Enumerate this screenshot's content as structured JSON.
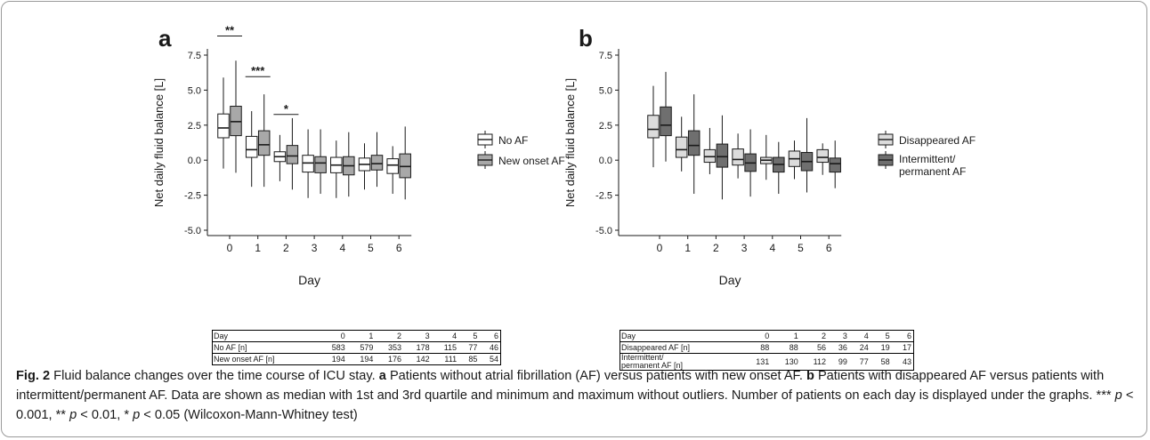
{
  "figure": {
    "caption": {
      "fig_label": "Fig. 2",
      "title": "Fluid balance changes over the time course of ICU stay.",
      "panel_a_tag": "a",
      "panel_a_text": "Patients without atrial fibrillation (AF) versus patients with new onset AF.",
      "panel_b_tag": "b",
      "panel_b_text": "Patients with disappeared AF versus patients with intermittent/permanent AF. Data are shown as median with 1st and 3rd quartile and minimum and maximum without outliers. Number of patients on each day is displayed under the graphs. ***",
      "p1_sym": "p",
      "p1_text": "< 0.001, **",
      "p2_sym": "p",
      "p2_text": "< 0.01, *",
      "p3_sym": "p",
      "p3_text": "< 0.05 (Wilcoxon-Mann-Whitney test)"
    }
  },
  "chart_data": [
    {
      "type": "box",
      "panel_label": "a",
      "xlabel": "Day",
      "ylabel": "Net daily fluid balance [L]",
      "ylim": [
        -5.5,
        8.2
      ],
      "yticks": [
        "7.5",
        "5.0",
        "2.5",
        "0.0",
        "-2.5",
        "-5.0"
      ],
      "ytick_values": [
        7.5,
        5.0,
        2.5,
        0.0,
        -2.5,
        -5.0
      ],
      "categories": [
        "0",
        "1",
        "2",
        "3",
        "4",
        "5",
        "6"
      ],
      "grid": false,
      "legend_position": "right",
      "series": [
        {
          "name": "No AF",
          "color": "#ffffff",
          "boxes": [
            {
              "min": -0.6,
              "q1": 1.6,
              "median": 2.3,
              "q3": 3.3,
              "max": 5.9
            },
            {
              "min": -1.9,
              "q1": 0.2,
              "median": 0.75,
              "q3": 1.7,
              "max": 3.5
            },
            {
              "min": -1.5,
              "q1": -0.1,
              "median": 0.25,
              "q3": 0.6,
              "max": 1.8
            },
            {
              "min": -2.7,
              "q1": -0.85,
              "median": -0.2,
              "q3": 0.35,
              "max": 2.2
            },
            {
              "min": -2.7,
              "q1": -0.9,
              "median": -0.35,
              "q3": 0.2,
              "max": 1.4
            },
            {
              "min": -2.1,
              "q1": -0.75,
              "median": -0.3,
              "q3": 0.15,
              "max": 1.2
            },
            {
              "min": -2.4,
              "q1": -0.95,
              "median": -0.35,
              "q3": 0.1,
              "max": 1.0
            }
          ]
        },
        {
          "name": "New onset AF",
          "color": "#a8a8a8",
          "boxes": [
            {
              "min": -0.9,
              "q1": 1.75,
              "median": 2.75,
              "q3": 3.85,
              "max": 7.1
            },
            {
              "min": -1.9,
              "q1": 0.35,
              "median": 1.1,
              "q3": 2.1,
              "max": 4.7
            },
            {
              "min": -2.1,
              "q1": -0.25,
              "median": 0.3,
              "q3": 1.05,
              "max": 3.0
            },
            {
              "min": -2.4,
              "q1": -0.9,
              "median": -0.2,
              "q3": 0.25,
              "max": 2.2
            },
            {
              "min": -2.6,
              "q1": -1.05,
              "median": -0.4,
              "q3": 0.25,
              "max": 2.0
            },
            {
              "min": -1.9,
              "q1": -0.7,
              "median": -0.25,
              "q3": 0.35,
              "max": 2.0
            },
            {
              "min": -2.8,
              "q1": -1.25,
              "median": -0.45,
              "q3": 0.45,
              "max": 2.4
            }
          ]
        }
      ],
      "significance": [
        {
          "day": "0",
          "label": "**",
          "y": 8.1
        },
        {
          "day": "1",
          "label": "***",
          "y": 5.2
        },
        {
          "day": "2",
          "label": "*",
          "y": 2.5
        }
      ],
      "table": {
        "header": [
          "Day",
          "0",
          "1",
          "2",
          "3",
          "4",
          "5",
          "6"
        ],
        "rows": [
          {
            "label": "No AF [n]",
            "values": [
              "583",
              "579",
              "353",
              "178",
              "115",
              "77",
              "46"
            ]
          },
          {
            "label": "New onset AF [n]",
            "values": [
              "194",
              "194",
              "176",
              "142",
              "111",
              "85",
              "54"
            ]
          }
        ]
      }
    },
    {
      "type": "box",
      "panel_label": "b",
      "xlabel": "Day",
      "ylabel": "Net daily fluid balance [L]",
      "ylim": [
        -5.5,
        8.2
      ],
      "yticks": [
        "7.5",
        "5.0",
        "2.5",
        "0.0",
        "-2.5",
        "-5.0"
      ],
      "ytick_values": [
        7.5,
        5.0,
        2.5,
        0.0,
        -2.5,
        -5.0
      ],
      "categories": [
        "0",
        "1",
        "2",
        "3",
        "4",
        "5",
        "6"
      ],
      "grid": false,
      "legend_position": "right",
      "series": [
        {
          "name": "Disappeared AF",
          "color": "#dcdcdc",
          "boxes": [
            {
              "min": -0.5,
              "q1": 1.6,
              "median": 2.2,
              "q3": 3.2,
              "max": 5.3
            },
            {
              "min": -0.8,
              "q1": 0.2,
              "median": 0.75,
              "q3": 1.65,
              "max": 3.1
            },
            {
              "min": -1.0,
              "q1": -0.15,
              "median": 0.25,
              "q3": 0.75,
              "max": 2.3
            },
            {
              "min": -1.3,
              "q1": -0.35,
              "median": 0.05,
              "q3": 0.8,
              "max": 1.9
            },
            {
              "min": -1.4,
              "q1": -0.25,
              "median": 0.0,
              "q3": 0.2,
              "max": 1.8
            },
            {
              "min": -1.35,
              "q1": -0.45,
              "median": 0.1,
              "q3": 0.65,
              "max": 1.4
            },
            {
              "min": -1.05,
              "q1": -0.15,
              "median": 0.2,
              "q3": 0.75,
              "max": 1.2
            }
          ]
        },
        {
          "name": "Intermittent/ permanent AF",
          "legend_lines": [
            "Intermittent/",
            "permanent AF"
          ],
          "color": "#6f6f6f",
          "boxes": [
            {
              "min": -0.1,
              "q1": 1.75,
              "median": 2.5,
              "q3": 3.8,
              "max": 6.3
            },
            {
              "min": -2.4,
              "q1": 0.35,
              "median": 1.05,
              "q3": 2.1,
              "max": 4.7
            },
            {
              "min": -2.8,
              "q1": -0.5,
              "median": 0.25,
              "q3": 1.15,
              "max": 3.2
            },
            {
              "min": -2.6,
              "q1": -0.8,
              "median": -0.2,
              "q3": 0.45,
              "max": 2.2
            },
            {
              "min": -2.4,
              "q1": -0.85,
              "median": -0.3,
              "q3": 0.2,
              "max": 1.3
            },
            {
              "min": -2.3,
              "q1": -0.75,
              "median": -0.1,
              "q3": 0.55,
              "max": 3.0
            },
            {
              "min": -2.0,
              "q1": -0.85,
              "median": -0.25,
              "q3": 0.15,
              "max": 1.4
            }
          ]
        }
      ],
      "significance": [],
      "table": {
        "header": [
          "Day",
          "0",
          "1",
          "2",
          "3",
          "4",
          "5",
          "6"
        ],
        "rows": [
          {
            "label": "Disappeared AF [n]",
            "values": [
              "88",
              "88",
              "56",
              "36",
              "24",
              "19",
              "17"
            ]
          },
          {
            "label": "Intermittent/ permanent AF [n]",
            "label_lines": [
              "Intermittent/",
              "permanent AF [n]"
            ],
            "values": [
              "131",
              "130",
              "112",
              "99",
              "77",
              "58",
              "43"
            ]
          }
        ]
      }
    }
  ]
}
